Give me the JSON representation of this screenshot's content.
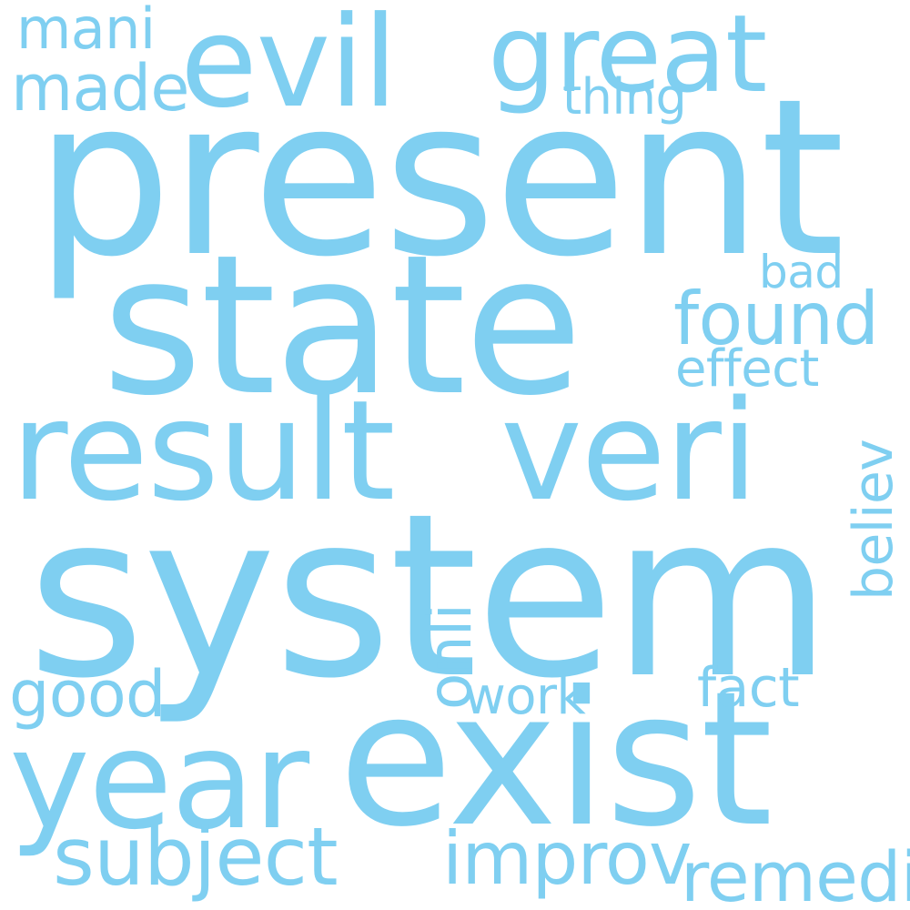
{
  "colors": {
    "text": "#7fcff1",
    "background": "#ffffff"
  },
  "words": {
    "present": "present",
    "state": "state",
    "system": "system",
    "exist": "exist",
    "year": "year",
    "result": "result",
    "veri": "veri",
    "evil": "evil",
    "great": "great",
    "mani": "mani",
    "made": "made",
    "thing": "thing",
    "found": "found",
    "bad": "bad",
    "effect": "effect",
    "believ": "believ",
    "onli": "onli",
    "good": "good",
    "work": "work",
    "fact": "fact",
    "subject": "subject",
    "improv": "improv",
    "remedi": "remedi"
  }
}
